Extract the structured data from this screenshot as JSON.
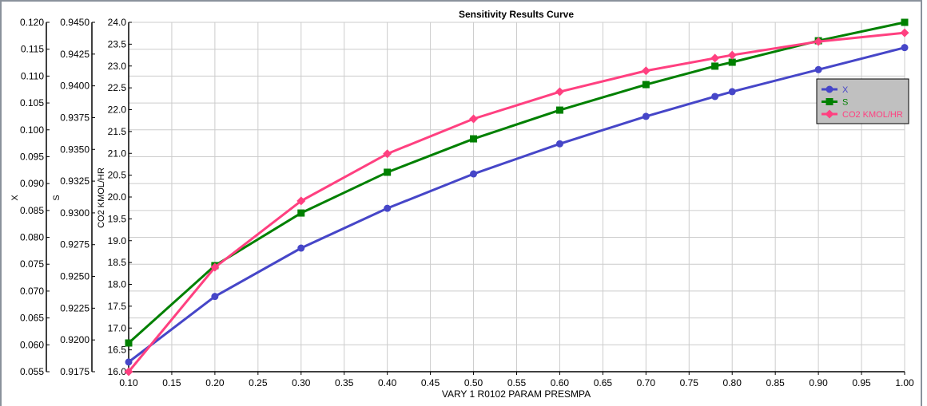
{
  "chart_data": {
    "type": "line",
    "title": "Sensitivity Results Curve",
    "xlabel": "VARY   1 R0102 PARAM PRESMPA",
    "xlim": [
      0.1,
      1.0
    ],
    "xticks": [
      "0.10",
      "0.15",
      "0.20",
      "0.25",
      "0.30",
      "0.35",
      "0.40",
      "0.45",
      "0.50",
      "0.55",
      "0.60",
      "0.65",
      "0.70",
      "0.75",
      "0.80",
      "0.85",
      "0.90",
      "0.95",
      "1.00"
    ],
    "grid": true,
    "legend_position": "top-right",
    "x": [
      0.1,
      0.2,
      0.3,
      0.4,
      0.5,
      0.6,
      0.7,
      0.78,
      0.8,
      0.9,
      1.0
    ],
    "y_axes": [
      {
        "label": "X",
        "ylim": [
          0.055,
          0.12
        ],
        "step": 0.005,
        "decimals": 3
      },
      {
        "label": "S",
        "ylim": [
          0.9175,
          0.945
        ],
        "step": 0.0025,
        "decimals": 4
      },
      {
        "label": "CO2 KMOL/HR",
        "ylim": [
          16.0,
          24.0
        ],
        "step": 0.5,
        "decimals": 1
      }
    ],
    "series": [
      {
        "name": "X",
        "axis": 0,
        "color": "#4646c8",
        "marker": "circle",
        "values": [
          0.0568,
          0.069,
          0.078,
          0.0854,
          0.0918,
          0.0974,
          0.1025,
          0.1062,
          0.1071,
          0.1112,
          0.1153
        ]
      },
      {
        "name": "S",
        "axis": 1,
        "color": "#008000",
        "marker": "square",
        "values": [
          0.91976,
          0.92585,
          0.92999,
          0.9332,
          0.93583,
          0.93809,
          0.9401,
          0.94155,
          0.94186,
          0.94355,
          0.945
        ]
      },
      {
        "name": "CO2 KMOL/HR",
        "axis": 2,
        "color": "#ff4080",
        "marker": "diamond",
        "values": [
          16.0,
          18.39,
          19.91,
          20.99,
          21.79,
          22.41,
          22.89,
          23.18,
          23.25,
          23.56,
          23.76
        ]
      }
    ]
  }
}
